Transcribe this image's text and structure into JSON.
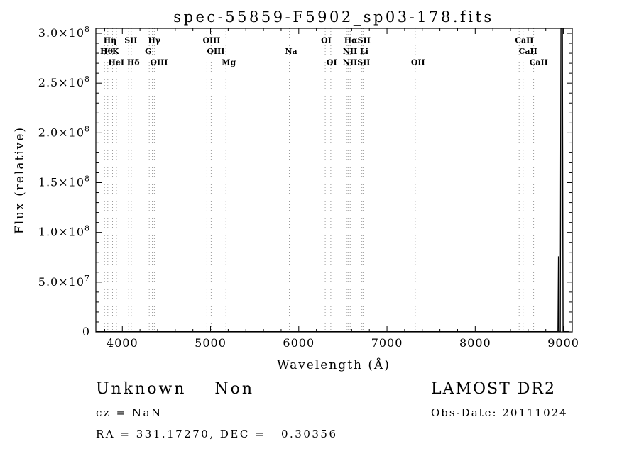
{
  "footer": {
    "class_label": "Unknown    Non",
    "cz": "cz = NaN",
    "coords": "RA = 331.17270, DEC =   0.30356",
    "survey": "LAMOST DR2",
    "obs_date": "Obs-Date: 20111024"
  },
  "chart_data": {
    "type": "line",
    "title": "spec-55859-F5902_sp03-178.fits",
    "xlabel": "Wavelength (Å)",
    "ylabel": "Flux (relative)",
    "xlim": [
      3700,
      9100
    ],
    "ylim": [
      0,
      305000000
    ],
    "grid": false,
    "frame_color": "#000000",
    "spectral_line_color": "#9a9a9a",
    "x_ticks": [
      4000,
      5000,
      6000,
      7000,
      8000,
      9000
    ],
    "x_minor_step": 200,
    "y_minor_step": 10000000,
    "y_ticks": [
      {
        "value": 0,
        "label": "0",
        "exp": ""
      },
      {
        "value": 50000000,
        "label": "5.0×10",
        "exp": "7"
      },
      {
        "value": 100000000,
        "label": "1.0×10",
        "exp": "8"
      },
      {
        "value": 150000000,
        "label": "1.5×10",
        "exp": "8"
      },
      {
        "value": 200000000,
        "label": "2.0×10",
        "exp": "8"
      },
      {
        "value": 250000000,
        "label": "2.5×10",
        "exp": "8"
      },
      {
        "value": 300000000,
        "label": "3.0×10",
        "exp": "8"
      }
    ],
    "series": [
      {
        "name": "spectrum",
        "note": "flux is ~0 across the band with a narrow off-scale spike near 8980 Å and a small spike (~7.6e7) near 8944 Å",
        "x": [
          3700,
          8900,
          8938,
          8944,
          8950,
          8964,
          8972,
          8988,
          8996,
          9064
        ],
        "y": [
          300000,
          300000,
          300000,
          76000000,
          300000,
          300000,
          305000000,
          305000000,
          300000,
          300000
        ]
      }
    ],
    "spectral_lines": {
      "wavelengths": [
        3798,
        3835,
        3889,
        3933,
        4072,
        4101,
        4305,
        4340,
        4363,
        4959,
        5007,
        5175,
        5893,
        6300,
        6363,
        6548,
        6563,
        6583,
        6707,
        6716,
        6731,
        7320,
        8498,
        8542,
        8662
      ],
      "labels": [
        {
          "text": "Hη",
          "wavelength": 3835,
          "row": 1
        },
        {
          "text": "SII",
          "wavelength": 4072,
          "row": 1
        },
        {
          "text": "Hγ",
          "wavelength": 4340,
          "row": 1
        },
        {
          "text": "OIII",
          "wavelength": 4959,
          "row": 1
        },
        {
          "text": "OI",
          "wavelength": 6300,
          "row": 1
        },
        {
          "text": "HαSII",
          "wavelength": 6563,
          "row": 1
        },
        {
          "text": "CaII",
          "wavelength": 8498,
          "row": 1
        },
        {
          "text": "Hθ",
          "wavelength": 3798,
          "row": 2
        },
        {
          "text": "K",
          "wavelength": 3933,
          "row": 2
        },
        {
          "text": "G",
          "wavelength": 4305,
          "row": 2
        },
        {
          "text": "OIII",
          "wavelength": 5007,
          "row": 2
        },
        {
          "text": "Na",
          "wavelength": 5893,
          "row": 2
        },
        {
          "text": "NII Li",
          "wavelength": 6548,
          "row": 2
        },
        {
          "text": "CaII",
          "wavelength": 8542,
          "row": 2
        },
        {
          "text": "HeI",
          "wavelength": 3889,
          "row": 3
        },
        {
          "text": "Hδ",
          "wavelength": 4101,
          "row": 3
        },
        {
          "text": "OIII",
          "wavelength": 4363,
          "row": 3
        },
        {
          "text": "Mg",
          "wavelength": 5175,
          "row": 3
        },
        {
          "text": "OI",
          "wavelength": 6363,
          "row": 3
        },
        {
          "text": "NIISII",
          "wavelength": 6548,
          "row": 3
        },
        {
          "text": "OII",
          "wavelength": 7320,
          "row": 3
        },
        {
          "text": "CaII",
          "wavelength": 8662,
          "row": 3
        }
      ]
    }
  }
}
